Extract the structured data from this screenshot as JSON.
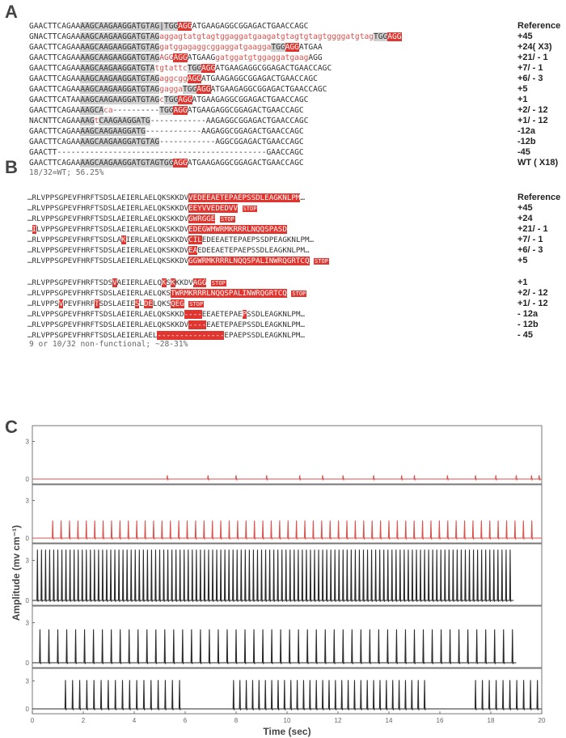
{
  "panelA": {
    "letter": "A",
    "labels": [
      "Reference",
      "+45",
      "+24( X3)",
      "+21/ - 1",
      "+7/ - 1",
      "+6/ - 3",
      "+5",
      "+1",
      "+2/ - 12",
      "+1/ - 12",
      "-12a",
      "-12b",
      "-45",
      "WT ( X18)"
    ],
    "footer": "18/32=WT; 56.25%"
  },
  "panelB": {
    "letter": "B",
    "labels": [
      "Reference",
      "+45",
      "+24",
      "+21/ - 1",
      "+7/ - 1",
      "+6/ - 3",
      "+5",
      "+1",
      "+2/ - 12",
      "+1/ - 12",
      "- 12a",
      "- 12b",
      "- 45"
    ],
    "footer": "9 or 10/32 non-functional; ~28-31%",
    "stop_label": "STOP"
  },
  "panelC": {
    "letter": "C",
    "ylabel": "Amplitude (mv cm⁻¹)",
    "xlabel": "Time (sec)",
    "xticks": [
      "0",
      "2",
      "4",
      "6",
      "8",
      "10",
      "12",
      "14",
      "16",
      "18",
      "20"
    ],
    "yticks": [
      "0",
      "3"
    ],
    "colors": {
      "red": "#d9534f",
      "black": "#2a2a2a"
    }
  },
  "chart_data": [
    {
      "type": "line",
      "trace": 1,
      "color": "red",
      "xlim": [
        0,
        20
      ],
      "ylim": [
        0,
        4
      ],
      "spike_times": [
        5.3,
        6.9,
        8.0,
        9.2,
        10.5,
        11.4,
        12.2,
        13.4,
        14.5,
        15.0,
        16.3,
        17.4,
        18.2,
        19.0,
        19.6,
        19.9
      ],
      "spike_heights": [
        0.3,
        0.3,
        0.3,
        0.3,
        0.3,
        0.3,
        0.3,
        0.3,
        0.3,
        0.3,
        0.3,
        0.3,
        0.3,
        0.3,
        0.3,
        0.3
      ]
    },
    {
      "type": "line",
      "trace": 2,
      "color": "red",
      "xlim": [
        0,
        20
      ],
      "ylim": [
        0,
        4
      ],
      "spike_period": 0.33,
      "spike_start": 0.8,
      "spike_end": 19.9,
      "spike_height": 1.4
    },
    {
      "type": "line",
      "trace": 3,
      "color": "black",
      "xlim": [
        0,
        20
      ],
      "ylim": [
        0,
        4
      ],
      "spike_period": 0.16,
      "spike_start": 0.2,
      "spike_end": 18.8,
      "spike_height": 3.8
    },
    {
      "type": "line",
      "trace": 4,
      "color": "black",
      "xlim": [
        0,
        20
      ],
      "ylim": [
        0,
        4
      ],
      "spike_period": 0.35,
      "spike_start": 0.3,
      "spike_end": 18.9,
      "spike_height": 2.5
    },
    {
      "type": "line",
      "trace": 5,
      "color": "black",
      "xlim": [
        0,
        20
      ],
      "ylim": [
        0,
        4
      ],
      "bursts": [
        [
          1.3,
          5.9,
          0.28,
          3.1
        ],
        [
          7.9,
          15.4,
          0.25,
          3.1
        ],
        [
          17.4,
          19.9,
          0.27,
          3.1
        ]
      ]
    }
  ]
}
